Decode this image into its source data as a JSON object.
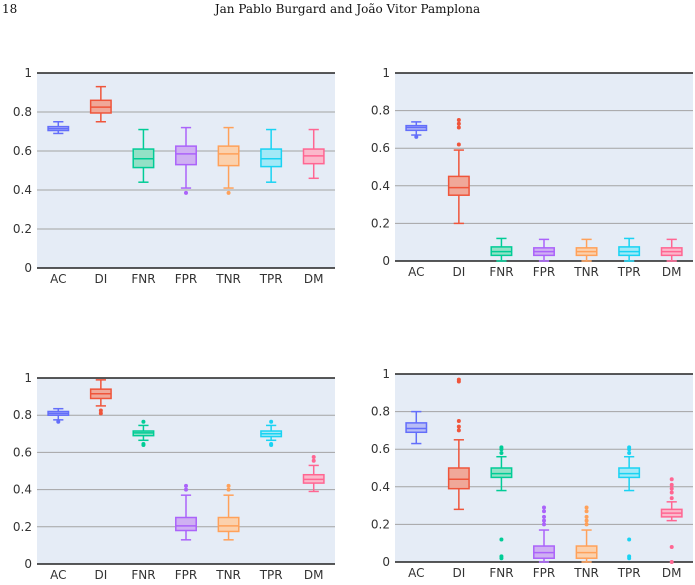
{
  "header": {
    "page_number": "18",
    "authors": "Jan Pablo Burgard and João Vitor Pamplona"
  },
  "chart_data": [
    {
      "type": "box",
      "categories": [
        "AC",
        "DI",
        "FNR",
        "FPR",
        "TNR",
        "TPR",
        "DM"
      ],
      "ylim": [
        0,
        1
      ],
      "yticks": [
        0,
        0.2,
        0.4,
        0.6,
        0.8,
        1
      ],
      "ytick_labels": [
        "0",
        "0.2",
        "0.4",
        "0.6",
        "0.8",
        "1"
      ],
      "grid": true,
      "boxes": [
        {
          "min": 0.69,
          "q1": 0.705,
          "median": 0.715,
          "q3": 0.725,
          "max": 0.75,
          "outliers": []
        },
        {
          "min": 0.75,
          "q1": 0.795,
          "median": 0.825,
          "q3": 0.86,
          "max": 0.93,
          "outliers": []
        },
        {
          "min": 0.44,
          "q1": 0.515,
          "median": 0.56,
          "q3": 0.61,
          "max": 0.71,
          "outliers": []
        },
        {
          "min": 0.41,
          "q1": 0.53,
          "median": 0.585,
          "q3": 0.625,
          "max": 0.72,
          "outliers": [
            0.385
          ]
        },
        {
          "min": 0.41,
          "q1": 0.525,
          "median": 0.585,
          "q3": 0.625,
          "max": 0.72,
          "outliers": [
            0.385
          ]
        },
        {
          "min": 0.44,
          "q1": 0.52,
          "median": 0.56,
          "q3": 0.61,
          "max": 0.71,
          "outliers": []
        },
        {
          "min": 0.46,
          "q1": 0.535,
          "median": 0.575,
          "q3": 0.61,
          "max": 0.71,
          "outliers": []
        }
      ]
    },
    {
      "type": "box",
      "categories": [
        "AC",
        "DI",
        "FNR",
        "FPR",
        "TNR",
        "TPR",
        "DM"
      ],
      "ylim": [
        0,
        1
      ],
      "yticks": [
        0,
        0.2,
        0.4,
        0.6,
        0.8,
        1
      ],
      "ytick_labels": [
        "0",
        "0.2",
        "0.4",
        "0.6",
        "0.8",
        "1"
      ],
      "grid": true,
      "boxes": [
        {
          "min": 0.67,
          "q1": 0.695,
          "median": 0.71,
          "q3": 0.72,
          "max": 0.74,
          "outliers": [
            0.66
          ]
        },
        {
          "min": 0.2,
          "q1": 0.35,
          "median": 0.39,
          "q3": 0.45,
          "max": 0.59,
          "outliers": [
            0.62,
            0.71,
            0.73,
            0.75
          ]
        },
        {
          "min": 0.0,
          "q1": 0.03,
          "median": 0.05,
          "q3": 0.075,
          "max": 0.12,
          "outliers": []
        },
        {
          "min": 0.0,
          "q1": 0.03,
          "median": 0.05,
          "q3": 0.07,
          "max": 0.115,
          "outliers": []
        },
        {
          "min": 0.0,
          "q1": 0.03,
          "median": 0.05,
          "q3": 0.07,
          "max": 0.115,
          "outliers": []
        },
        {
          "min": 0.0,
          "q1": 0.03,
          "median": 0.05,
          "q3": 0.075,
          "max": 0.12,
          "outliers": []
        },
        {
          "min": 0.0,
          "q1": 0.03,
          "median": 0.05,
          "q3": 0.07,
          "max": 0.115,
          "outliers": []
        }
      ]
    },
    {
      "type": "box",
      "categories": [
        "AC",
        "DI",
        "FNR",
        "FPR",
        "TNR",
        "TPR",
        "DM"
      ],
      "ylim": [
        0,
        1
      ],
      "yticks": [
        0,
        0.2,
        0.4,
        0.6,
        0.8,
        1
      ],
      "ytick_labels": [
        "0",
        "0.2",
        "0.4",
        "0.6",
        "0.8",
        "1"
      ],
      "grid": true,
      "boxes": [
        {
          "min": 0.775,
          "q1": 0.8,
          "median": 0.81,
          "q3": 0.82,
          "max": 0.835,
          "outliers": [
            0.765
          ]
        },
        {
          "min": 0.85,
          "q1": 0.89,
          "median": 0.915,
          "q3": 0.94,
          "max": 0.99,
          "outliers": [
            0.81,
            0.825
          ]
        },
        {
          "min": 0.665,
          "q1": 0.69,
          "median": 0.705,
          "q3": 0.715,
          "max": 0.745,
          "outliers": [
            0.64,
            0.645,
            0.765
          ]
        },
        {
          "min": 0.13,
          "q1": 0.18,
          "median": 0.205,
          "q3": 0.25,
          "max": 0.37,
          "outliers": [
            0.4,
            0.42
          ]
        },
        {
          "min": 0.13,
          "q1": 0.175,
          "median": 0.205,
          "q3": 0.25,
          "max": 0.37,
          "outliers": [
            0.4,
            0.42
          ]
        },
        {
          "min": 0.665,
          "q1": 0.685,
          "median": 0.7,
          "q3": 0.715,
          "max": 0.745,
          "outliers": [
            0.64,
            0.645,
            0.765
          ]
        },
        {
          "min": 0.39,
          "q1": 0.435,
          "median": 0.455,
          "q3": 0.48,
          "max": 0.53,
          "outliers": [
            0.555,
            0.575
          ]
        }
      ]
    },
    {
      "type": "box",
      "categories": [
        "AC",
        "DI",
        "FNR",
        "FPR",
        "TNR",
        "TPR",
        "DM"
      ],
      "ylim": [
        0,
        1
      ],
      "yticks": [
        0,
        0.2,
        0.4,
        0.6,
        0.8,
        1
      ],
      "ytick_labels": [
        "0",
        "0.2",
        "0.4",
        "0.6",
        "0.8",
        "1"
      ],
      "grid": true,
      "boxes": [
        {
          "min": 0.63,
          "q1": 0.69,
          "median": 0.71,
          "q3": 0.74,
          "max": 0.8,
          "outliers": []
        },
        {
          "min": 0.28,
          "q1": 0.39,
          "median": 0.44,
          "q3": 0.5,
          "max": 0.65,
          "outliers": [
            0.7,
            0.72,
            0.75,
            0.96,
            0.97
          ]
        },
        {
          "min": 0.38,
          "q1": 0.45,
          "median": 0.47,
          "q3": 0.5,
          "max": 0.56,
          "outliers": [
            0.58,
            0.6,
            0.61,
            0.12,
            0.03,
            0.02
          ]
        },
        {
          "min": 0.0,
          "q1": 0.02,
          "median": 0.05,
          "q3": 0.085,
          "max": 0.17,
          "outliers": [
            0.2,
            0.22,
            0.24,
            0.27,
            0.29
          ]
        },
        {
          "min": 0.0,
          "q1": 0.02,
          "median": 0.05,
          "q3": 0.085,
          "max": 0.17,
          "outliers": [
            0.2,
            0.22,
            0.24,
            0.27,
            0.29
          ]
        },
        {
          "min": 0.38,
          "q1": 0.45,
          "median": 0.47,
          "q3": 0.5,
          "max": 0.56,
          "outliers": [
            0.58,
            0.6,
            0.61,
            0.12,
            0.03,
            0.02
          ]
        },
        {
          "min": 0.22,
          "q1": 0.24,
          "median": 0.26,
          "q3": 0.28,
          "max": 0.32,
          "outliers": [
            0.34,
            0.37,
            0.39,
            0.41,
            0.44,
            0.08,
            0.0
          ]
        }
      ]
    }
  ],
  "colors": {
    "plot_bg": "#e5ecf6",
    "grid": "#a3a3a3",
    "axis": "#222222",
    "series": [
      "#636efa",
      "#ef553b",
      "#00cc96",
      "#ab63fa",
      "#ffa15a",
      "#19d3f3",
      "#ff6692"
    ],
    "fills": [
      "#b8bdf6",
      "#f0a899",
      "#93e1c6",
      "#cfb0f2",
      "#fbd1ad",
      "#a2e9f7",
      "#fbb8cb"
    ]
  }
}
